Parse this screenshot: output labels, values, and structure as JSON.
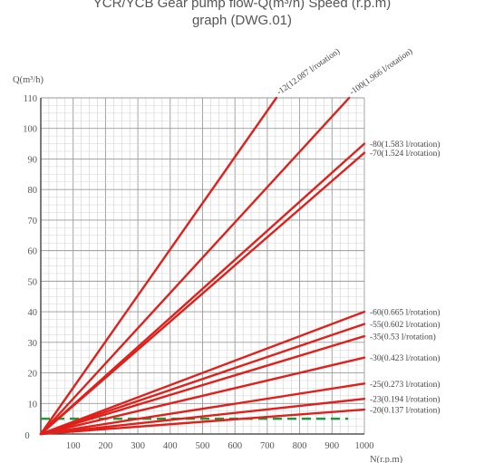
{
  "title_line1": "YCR/YCB Gear pump flow-Q(m³/h) Speed (r.p.m)",
  "title_line2": "graph (DWG.01)",
  "chart_data": {
    "type": "line",
    "title": "YCR/YCB Gear pump flow-Q(m³/h) Speed (r.p.m) graph (DWG.01)",
    "ylabel": "Q(m³/h)",
    "xlabel": "N(r.p.m)",
    "xlim": [
      0,
      1000
    ],
    "ylim": [
      0,
      110
    ],
    "x_ticks": [
      "0",
      "100",
      "200",
      "300",
      "400",
      "500",
      "600",
      "700",
      "800",
      "900",
      "1000"
    ],
    "y_ticks": [
      "10",
      "20",
      "30",
      "40",
      "50",
      "60",
      "70",
      "80",
      "90",
      "100",
      "110"
    ],
    "grid": true,
    "series": [
      {
        "name": "-12(12.087 l/rotation)",
        "x": [
          0,
          728
        ],
        "y": [
          0,
          110
        ],
        "color": "#e0201b"
      },
      {
        "name": "-100(1.966 l/rotation)",
        "x": [
          0,
          953
        ],
        "y": [
          0,
          110
        ],
        "color": "#e0201b"
      },
      {
        "name": "-80(1.583 l/rotation)",
        "x": [
          0,
          1000
        ],
        "y": [
          0,
          95
        ],
        "color": "#e0201b"
      },
      {
        "name": "-70(1.524 l/rotation)",
        "x": [
          0,
          1000
        ],
        "y": [
          0,
          92
        ],
        "color": "#e0201b"
      },
      {
        "name": "-60(0.665 l/rotation)",
        "x": [
          0,
          1000
        ],
        "y": [
          0,
          40
        ],
        "color": "#e0201b"
      },
      {
        "name": "-55(0.602 l/rotation)",
        "x": [
          0,
          1000
        ],
        "y": [
          0,
          36
        ],
        "color": "#e0201b"
      },
      {
        "name": "-35(0.53 l/rotation)",
        "x": [
          0,
          1000
        ],
        "y": [
          0,
          32
        ],
        "color": "#e0201b"
      },
      {
        "name": "-30(0.423 l/rotation)",
        "x": [
          0,
          1000
        ],
        "y": [
          0,
          25
        ],
        "color": "#e0201b"
      },
      {
        "name": "-25(0.273 l/rotation)",
        "x": [
          0,
          1000
        ],
        "y": [
          0,
          16.5
        ],
        "color": "#e0201b"
      },
      {
        "name": "-23(0.194 l/rotation)",
        "x": [
          0,
          1000
        ],
        "y": [
          0,
          11.5
        ],
        "color": "#e0201b"
      },
      {
        "name": "-20(0.137 l/rotation)",
        "x": [
          0,
          1000
        ],
        "y": [
          0,
          8
        ],
        "color": "#e0201b"
      }
    ],
    "reference_line": {
      "y": 5,
      "x": [
        0,
        950
      ],
      "style": "dashed",
      "color": "#1e9a3c"
    }
  }
}
